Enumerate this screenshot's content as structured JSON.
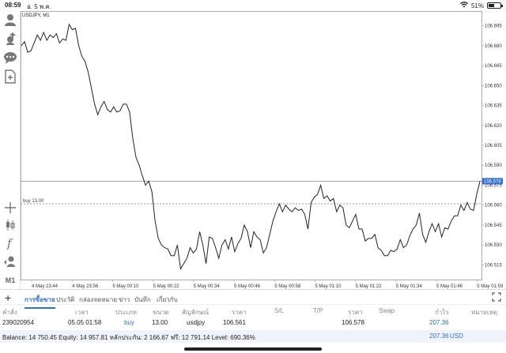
{
  "status_bar": {
    "time": "08:59",
    "date": "อ. 5 พ.ค.",
    "battery_text": "51%",
    "battery_level": 0.51
  },
  "sidebar": {
    "items": [
      {
        "icon": "user-icon"
      },
      {
        "icon": "share-icon"
      },
      {
        "icon": "chat-icon"
      },
      {
        "icon": "new-document-icon"
      },
      {
        "icon": "crosshair-icon"
      },
      {
        "icon": "candlestick-icon"
      },
      {
        "icon": "function-icon"
      },
      {
        "icon": "objects-icon"
      },
      {
        "label": "M1"
      }
    ]
  },
  "chart_data": {
    "type": "line",
    "title": "USDJPY, M1",
    "series": [
      {
        "values": [
          106.68,
          106.683,
          106.675,
          106.676,
          106.682,
          106.688,
          106.684,
          106.69,
          106.684,
          106.688,
          106.686,
          106.689,
          106.682,
          106.685,
          106.684,
          106.696,
          106.692,
          106.693,
          106.68,
          106.672,
          106.668,
          106.66,
          106.648,
          106.636,
          106.628,
          106.634,
          106.638,
          106.632,
          106.63,
          106.634,
          106.63,
          106.631,
          106.636,
          106.636,
          106.63,
          106.61,
          106.596,
          106.59,
          106.582,
          106.575,
          106.578,
          106.57,
          106.548,
          106.535,
          106.53,
          106.528,
          106.527,
          106.522,
          106.522,
          106.53,
          106.512,
          106.516,
          106.52,
          106.528,
          106.524,
          106.527,
          106.54,
          106.53,
          106.516,
          106.536,
          106.535,
          106.528,
          106.52,
          106.53,
          106.534,
          106.527,
          106.536,
          106.525,
          106.531,
          106.535,
          106.545,
          106.54,
          106.528,
          106.54,
          106.536,
          106.534,
          106.524,
          106.528,
          106.538,
          106.548,
          106.555,
          106.561,
          106.555,
          106.56,
          106.557,
          106.555,
          106.558,
          106.556,
          106.557,
          106.553,
          106.542,
          106.562,
          106.566,
          106.568,
          106.575,
          106.565,
          106.567,
          106.563,
          106.565,
          106.555,
          106.56,
          106.558,
          106.545,
          106.543,
          106.548,
          106.553,
          106.542,
          106.542,
          106.533,
          106.535,
          106.535,
          106.538,
          106.528,
          106.526,
          106.522,
          106.522,
          106.526,
          106.525,
          106.527,
          106.534,
          106.528,
          106.53,
          106.537,
          106.542,
          106.545,
          106.554,
          106.538,
          106.532,
          106.54,
          106.546,
          106.54,
          106.546,
          106.536,
          106.543,
          106.542,
          106.548,
          106.552,
          106.552,
          106.56,
          106.556,
          106.562,
          106.557,
          106.556,
          106.568,
          106.578
        ]
      }
    ],
    "xtick_labels": [
      "4 May 23:44",
      "4 May 23:56",
      "5 May 00:10",
      "5 May 00:22",
      "5 May 00:34",
      "5 May 00:46",
      "5 May 00:58",
      "5 May 01:10",
      "5 May 01:22",
      "5 May 01:34",
      "5 May 01:46",
      "5 May 01:59"
    ],
    "ytick_labels": [
      "106.695",
      "106.680",
      "106.665",
      "106.650",
      "106.635",
      "106.620",
      "106.605",
      "106.590",
      "106.575",
      "106.560",
      "106.545",
      "106.530",
      "106.515"
    ],
    "ylim": [
      106.504,
      106.706
    ],
    "current_price": "106.578",
    "buy_line": {
      "label": "buy 13.00",
      "value": 106.561
    },
    "grid": false,
    "colors": {
      "line": "#222222",
      "current_price_bg": "#2f6fd6",
      "buy_line": "#888888"
    }
  },
  "tabs": {
    "items": [
      "การซื้อขาย",
      "ประวัติ",
      "กล่องจดหมาย",
      "ข่าว",
      "บันทึก",
      "เกี่ยวกับ"
    ],
    "active": 0
  },
  "table": {
    "headers": [
      "คำสั่ง",
      "เวลา",
      "ประเภท",
      "ขนาด",
      "สัญลักษณ์",
      "ราคา",
      "S/L",
      "T/P",
      "ราคา",
      "Swap",
      "กำไร",
      "หมายเหตุ"
    ],
    "row": {
      "order": "239020954",
      "time": "05.05 01:58",
      "type": "buy",
      "volume": "13.00",
      "symbol": "usdjpy",
      "open_price": "106.561",
      "sl": "",
      "tp": "",
      "price": "106.578",
      "swap": "",
      "profit": "207.36",
      "comment": ""
    }
  },
  "summary": {
    "text": "Balance: 14 750.45  Equity: 14 957.81  หลักประกัน: 2 166.67  ฟรี: 12 791.14  Level: 690.36%",
    "profit": "207.36",
    "currency": "USD"
  },
  "colors": {
    "accent": "#2f6fd6"
  }
}
